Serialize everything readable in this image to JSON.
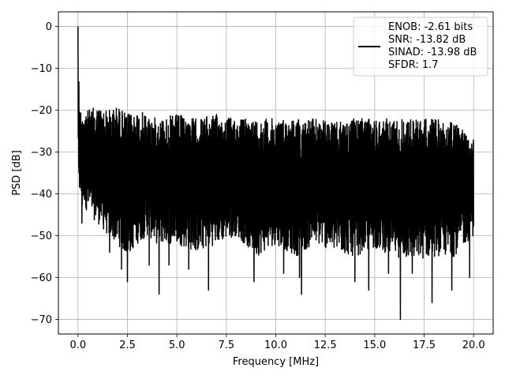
{
  "chart_data": {
    "type": "line",
    "title": "",
    "xlabel": "Frequency [MHz]",
    "ylabel": "PSD [dB]",
    "xlim": [
      -0.99,
      20.99
    ],
    "ylim": [
      -73.5,
      3.5
    ],
    "xticks": [
      0.0,
      2.5,
      5.0,
      7.5,
      10.0,
      12.5,
      15.0,
      17.5,
      20.0
    ],
    "xtick_labels": [
      "0.0",
      "2.5",
      "5.0",
      "7.5",
      "10.0",
      "12.5",
      "15.0",
      "17.5",
      "20.0"
    ],
    "yticks": [
      0,
      -10,
      -20,
      -30,
      -40,
      -50,
      -60,
      -70
    ],
    "ytick_labels": [
      "0",
      "−10",
      "−20",
      "−30",
      "−40",
      "−50",
      "−60",
      "−70"
    ],
    "grid": true,
    "legend_position": "upper right",
    "series": [
      {
        "color": "#000000",
        "description": "Dense noise-floor spectrum; peak 0 dB at DC, decaying to an upper envelope near -20 dB, noise band roughly -20 to -55 dB with deep dips to about -70 dB",
        "x": [
          0.0,
          0.02,
          0.05,
          0.1,
          0.2,
          0.3,
          0.5,
          1.0,
          1.5,
          2.0,
          2.5,
          3.0,
          3.5,
          4.0,
          5.0,
          6.0,
          7.0,
          8.0,
          9.0,
          10.0,
          11.0,
          12.0,
          13.0,
          14.0,
          15.0,
          16.0,
          17.0,
          18.0,
          19.0,
          20.0
        ],
        "upper_envelope": [
          0,
          -8,
          -12,
          -18,
          -22,
          -18,
          -20,
          -19,
          -20,
          -19,
          -21,
          -20,
          -21,
          -22,
          -21,
          -22,
          -21,
          -22,
          -22,
          -22,
          -22,
          -22,
          -23,
          -22,
          -22,
          -22,
          -22,
          -22,
          -23,
          -25
        ],
        "lower_envelope": [
          -25,
          -33,
          -46,
          -40,
          -45,
          -42,
          -45,
          -47,
          -50,
          -52,
          -55,
          -52,
          -50,
          -52,
          -52,
          -54,
          -52,
          -50,
          -55,
          -52,
          -55,
          -52,
          -54,
          -55,
          -53,
          -55,
          -56,
          -55,
          -55,
          -50
        ],
        "deep_dips": [
          {
            "x": 0.2,
            "y": -47
          },
          {
            "x": 1.6,
            "y": -54
          },
          {
            "x": 2.2,
            "y": -58
          },
          {
            "x": 2.5,
            "y": -61
          },
          {
            "x": 3.6,
            "y": -57
          },
          {
            "x": 4.1,
            "y": -64
          },
          {
            "x": 4.6,
            "y": -57
          },
          {
            "x": 5.6,
            "y": -58
          },
          {
            "x": 6.6,
            "y": -63
          },
          {
            "x": 8.9,
            "y": -61
          },
          {
            "x": 10.4,
            "y": -59
          },
          {
            "x": 11.3,
            "y": -64
          },
          {
            "x": 11.2,
            "y": -60
          },
          {
            "x": 14.0,
            "y": -61
          },
          {
            "x": 14.7,
            "y": -63
          },
          {
            "x": 15.7,
            "y": -59
          },
          {
            "x": 16.3,
            "y": -70
          },
          {
            "x": 16.9,
            "y": -59
          },
          {
            "x": 17.9,
            "y": -66
          },
          {
            "x": 18.9,
            "y": -63
          },
          {
            "x": 19.8,
            "y": -60
          }
        ]
      }
    ],
    "legend": {
      "entries": [
        {
          "line_color": "#000000",
          "text": "ENOB: -2.61 bits"
        }
      ],
      "extra_lines": [
        "SNR: -13.82 dB",
        "SINAD: -13.98 dB",
        "SFDR: 1.7"
      ]
    }
  }
}
